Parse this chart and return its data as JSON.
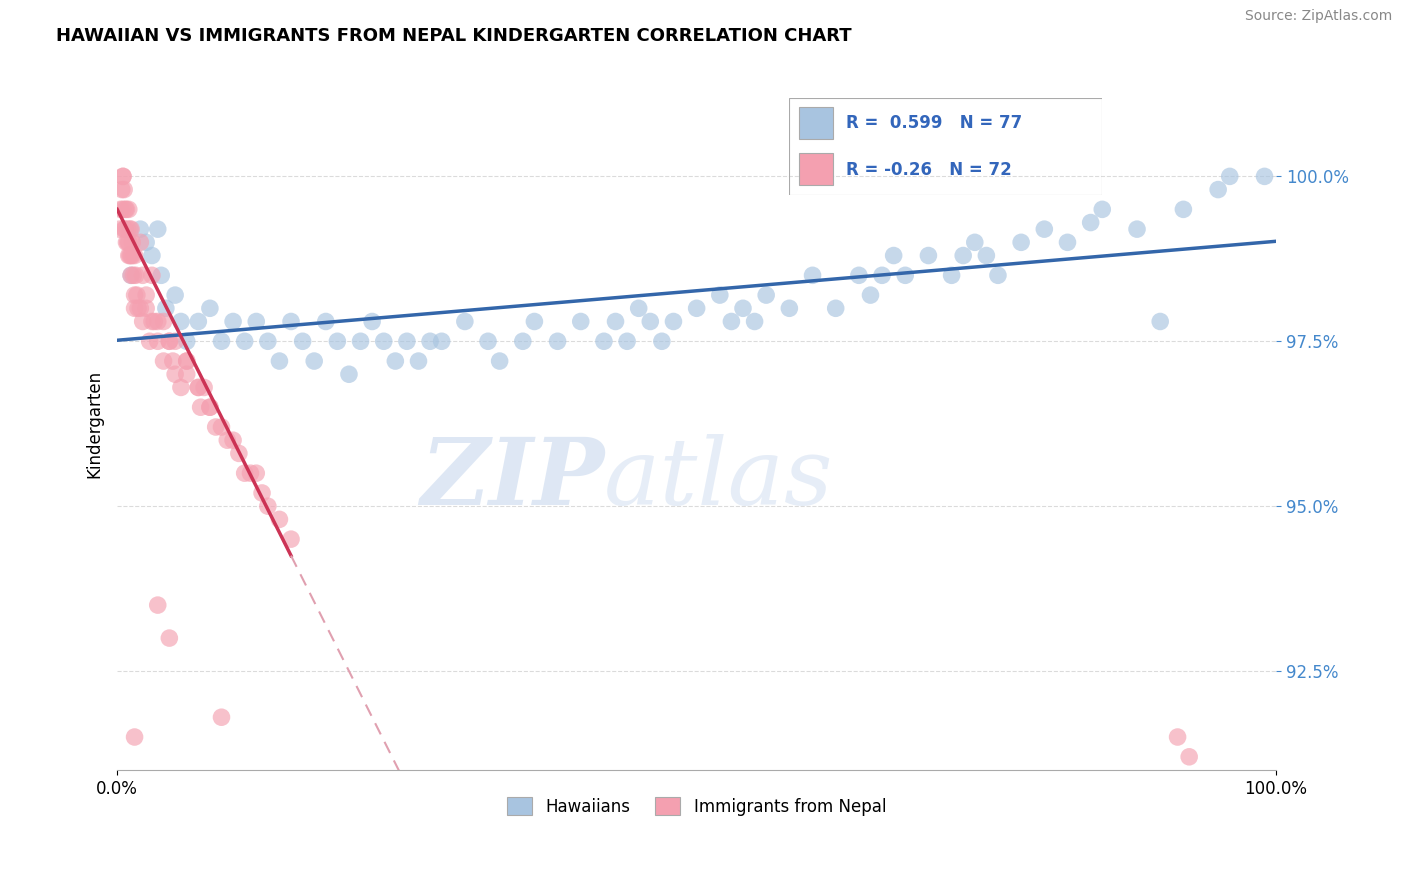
{
  "title": "HAWAIIAN VS IMMIGRANTS FROM NEPAL KINDERGARTEN CORRELATION CHART",
  "source": "Source: ZipAtlas.com",
  "ylabel": "Kindergarten",
  "ytick_labels": [
    "100.0%",
    "97.5%",
    "95.0%",
    "92.5%"
  ],
  "ytick_values": [
    100.0,
    97.5,
    95.0,
    92.5
  ],
  "xlim": [
    0.0,
    100.0
  ],
  "ylim": [
    91.0,
    101.5
  ],
  "r_hawaiian": 0.599,
  "n_hawaiian": 77,
  "r_nepal": -0.26,
  "n_nepal": 72,
  "hawaiian_color": "#a8c4e0",
  "nepal_color": "#f4a0b0",
  "trend_hawaiian_color": "#3366aa",
  "trend_nepal_solid_color": "#cc3355",
  "trend_nepal_dashed_color": "#e0a0b0",
  "watermark_text": "ZIPatlas",
  "watermark_color": "#c8d8f0",
  "legend_label_hawaiian": "Hawaiians",
  "legend_label_nepal": "Immigrants from Nepal",
  "hawaiian_x": [
    1.2,
    2.0,
    2.5,
    3.0,
    3.5,
    3.8,
    4.2,
    5.0,
    5.5,
    6.0,
    7.0,
    8.0,
    9.0,
    10.0,
    11.0,
    12.0,
    13.0,
    14.0,
    15.0,
    16.0,
    17.0,
    18.0,
    19.0,
    20.0,
    21.0,
    22.0,
    23.0,
    24.0,
    25.0,
    26.0,
    27.0,
    28.0,
    30.0,
    32.0,
    33.0,
    35.0,
    36.0,
    38.0,
    40.0,
    42.0,
    43.0,
    44.0,
    45.0,
    46.0,
    47.0,
    48.0,
    50.0,
    52.0,
    53.0,
    54.0,
    55.0,
    56.0,
    58.0,
    60.0,
    62.0,
    64.0,
    65.0,
    66.0,
    67.0,
    68.0,
    70.0,
    72.0,
    73.0,
    74.0,
    75.0,
    76.0,
    78.0,
    80.0,
    82.0,
    84.0,
    85.0,
    88.0,
    90.0,
    92.0,
    95.0,
    96.0,
    99.0
  ],
  "hawaiian_y": [
    98.5,
    99.2,
    99.0,
    98.8,
    99.2,
    98.5,
    98.0,
    98.2,
    97.8,
    97.5,
    97.8,
    98.0,
    97.5,
    97.8,
    97.5,
    97.8,
    97.5,
    97.2,
    97.8,
    97.5,
    97.2,
    97.8,
    97.5,
    97.0,
    97.5,
    97.8,
    97.5,
    97.2,
    97.5,
    97.2,
    97.5,
    97.5,
    97.8,
    97.5,
    97.2,
    97.5,
    97.8,
    97.5,
    97.8,
    97.5,
    97.8,
    97.5,
    98.0,
    97.8,
    97.5,
    97.8,
    98.0,
    98.2,
    97.8,
    98.0,
    97.8,
    98.2,
    98.0,
    98.5,
    98.0,
    98.5,
    98.2,
    98.5,
    98.8,
    98.5,
    98.8,
    98.5,
    98.8,
    99.0,
    98.8,
    98.5,
    99.0,
    99.2,
    99.0,
    99.3,
    99.5,
    99.2,
    97.8,
    99.5,
    99.8,
    100.0,
    100.0
  ],
  "nepal_x": [
    0.2,
    0.3,
    0.4,
    0.5,
    0.5,
    0.6,
    0.6,
    0.7,
    0.7,
    0.8,
    0.8,
    0.9,
    0.9,
    1.0,
    1.0,
    1.1,
    1.1,
    1.2,
    1.2,
    1.3,
    1.3,
    1.4,
    1.5,
    1.5,
    1.6,
    1.7,
    1.8,
    2.0,
    2.2,
    2.5,
    2.8,
    3.0,
    3.5,
    4.0,
    4.5,
    5.0,
    5.5,
    6.0,
    7.0,
    8.0,
    8.5,
    9.5,
    11.0,
    13.0,
    15.0,
    2.0,
    3.0,
    4.0,
    5.0,
    6.0,
    7.0,
    8.0,
    10.0,
    12.0,
    0.5,
    1.0,
    1.5,
    2.5,
    3.5,
    4.5,
    6.0,
    7.5,
    9.0,
    10.5,
    12.5,
    14.0,
    1.2,
    2.2,
    3.2,
    4.8,
    7.2,
    11.5
  ],
  "nepal_y": [
    99.2,
    99.5,
    99.8,
    100.0,
    99.5,
    99.2,
    99.8,
    99.5,
    99.2,
    99.0,
    99.5,
    99.2,
    99.0,
    98.8,
    99.0,
    99.2,
    98.8,
    98.8,
    98.5,
    99.0,
    98.8,
    98.5,
    98.2,
    98.0,
    98.5,
    98.2,
    98.0,
    98.0,
    97.8,
    98.0,
    97.5,
    97.8,
    97.5,
    97.2,
    97.5,
    97.0,
    96.8,
    97.2,
    96.8,
    96.5,
    96.2,
    96.0,
    95.5,
    95.0,
    94.5,
    99.0,
    98.5,
    97.8,
    97.5,
    97.2,
    96.8,
    96.5,
    96.0,
    95.5,
    100.0,
    99.5,
    98.8,
    98.2,
    97.8,
    97.5,
    97.0,
    96.8,
    96.2,
    95.8,
    95.2,
    94.8,
    99.2,
    98.5,
    97.8,
    97.2,
    96.5,
    95.5
  ],
  "nepal_isolated_x": [
    1.5,
    3.5,
    4.5,
    9.0,
    92.5,
    91.5
  ],
  "nepal_isolated_y": [
    91.5,
    93.5,
    93.0,
    91.8,
    91.2,
    91.5
  ]
}
